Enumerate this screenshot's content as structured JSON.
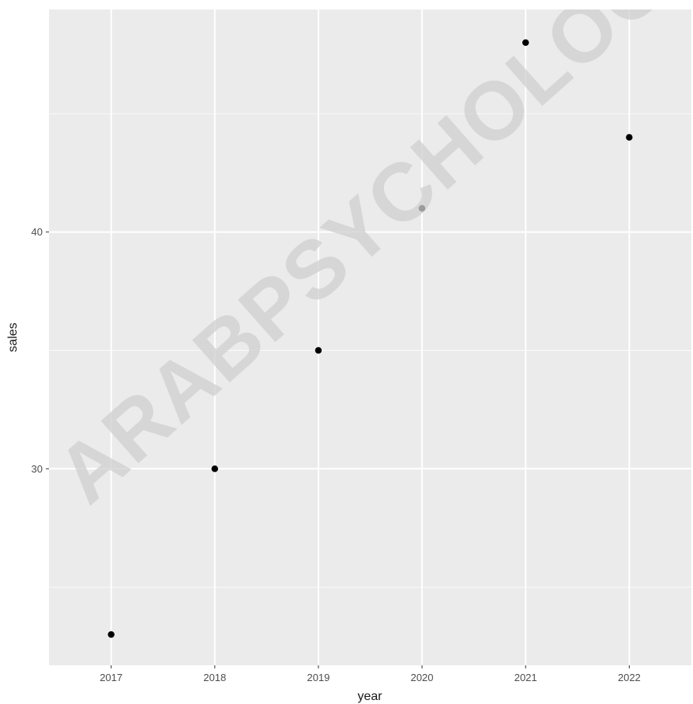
{
  "chart_data": {
    "type": "scatter",
    "title": "",
    "xlabel": "year",
    "ylabel": "sales",
    "x": [
      2017,
      2018,
      2019,
      2020,
      2021,
      2022
    ],
    "y": [
      23,
      30,
      35,
      41,
      48,
      44
    ],
    "xticks": [
      "2017",
      "2018",
      "2019",
      "2020",
      "2021",
      "2022"
    ],
    "yticks": [
      30,
      40
    ],
    "xlim": [
      2016.4,
      2022.6
    ],
    "ylim": [
      21.7,
      49.4
    ],
    "grid": true,
    "colors": {
      "panel": "#ebebeb",
      "grid": "#ffffff",
      "point": "#000000"
    }
  },
  "watermark": {
    "text": "ARABPSYCHOLOGY"
  }
}
